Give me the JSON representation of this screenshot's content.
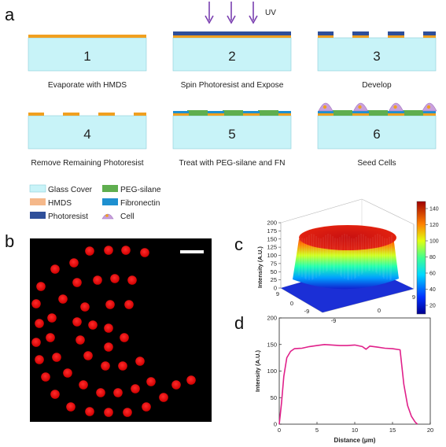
{
  "panel_labels": {
    "a": "a",
    "b": "b",
    "c": "c",
    "d": "d"
  },
  "uv_label": "UV",
  "steps": [
    {
      "number": "1",
      "caption": "Evaporate with HMDS"
    },
    {
      "number": "2",
      "caption": "Spin Photoresist and Expose"
    },
    {
      "number": "3",
      "caption": "Develop"
    },
    {
      "number": "4",
      "caption": "Remove Remaining Photoresist"
    },
    {
      "number": "5",
      "caption": "Treat with PEG-silane and FN"
    },
    {
      "number": "6",
      "caption": "Seed Cells"
    }
  ],
  "legend": [
    {
      "key": "glass",
      "label": "Glass Cover",
      "color": "#c8f3f8"
    },
    {
      "key": "hmds",
      "label": "HMDS",
      "color": "#f5b88a"
    },
    {
      "key": "photoresist",
      "label": "Photoresist",
      "color": "#2f4f9a"
    },
    {
      "key": "peg",
      "label": "PEG-silane",
      "color": "#5fae4f"
    },
    {
      "key": "fn",
      "label": "Fibronectin",
      "color": "#1e90d0"
    },
    {
      "key": "cell",
      "label": "Cell",
      "color": "#c9a0dc"
    }
  ],
  "colors": {
    "hmds_layer": "#f0a020",
    "uv_arrow": "#7a3fb0",
    "dot": "#ff1a1a",
    "line": "#e0208a",
    "micrograph_bg": "#000000"
  },
  "surface_plot": {
    "z_axis_label": "Intensity (A.U.)",
    "z_ticks": [
      "0",
      "25",
      "50",
      "75",
      "100",
      "125",
      "150",
      "175",
      "200"
    ],
    "x_ticks": [
      "-9",
      "0",
      "9"
    ],
    "y_ticks": [
      "-9",
      "0",
      "9"
    ],
    "colorbar_ticks": [
      "140",
      "120",
      "100",
      "80",
      "60",
      "40",
      "20"
    ],
    "colormap": "jet"
  },
  "chart_data": {
    "type": "line",
    "title": "",
    "xlabel": "Distance (μm)",
    "ylabel": "Intensity (A.U.)",
    "xlim": [
      0,
      20
    ],
    "ylim": [
      0,
      200
    ],
    "x_ticks": [
      0,
      5,
      10,
      15,
      20
    ],
    "y_ticks": [
      0,
      50,
      100,
      150,
      200
    ],
    "x_tick_labels": [
      "0",
      "5",
      "10",
      "15",
      "20"
    ],
    "y_tick_labels": [
      "0",
      "50",
      "100",
      "150",
      "200"
    ],
    "grid": false,
    "series": [
      {
        "x": [
          0,
          0.3,
          0.6,
          1.0,
          1.5,
          2.0,
          3.0,
          4.0,
          5.0,
          6.0,
          7.0,
          8.0,
          9.0,
          10.0,
          11.0,
          11.5,
          12.0,
          13.0,
          14.0,
          15.0,
          16.0,
          16.5,
          17.0,
          17.5,
          18.0,
          18.3
        ],
        "y": [
          0,
          40,
          90,
          125,
          137,
          142,
          143,
          146,
          148,
          150,
          149,
          148,
          148,
          149,
          146,
          141,
          147,
          145,
          143,
          142,
          140,
          75,
          35,
          15,
          4,
          0
        ]
      }
    ]
  }
}
